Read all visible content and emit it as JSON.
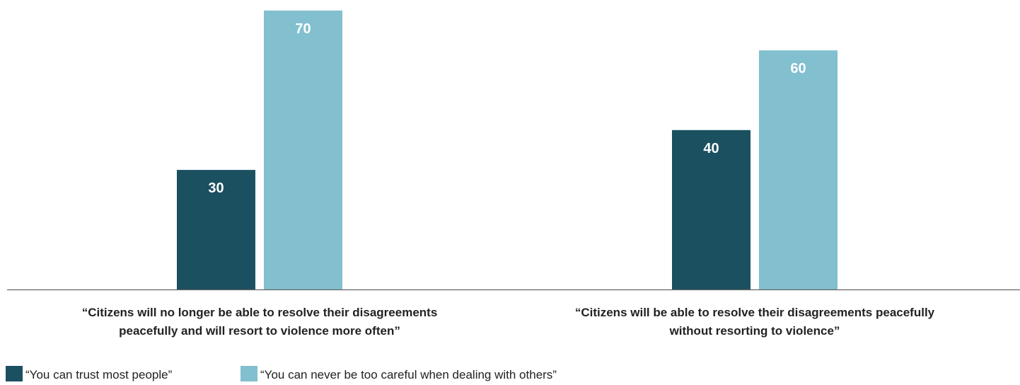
{
  "colors": {
    "series_1": "#1a5060",
    "series_2": "#82bfcf",
    "axis": "#666666",
    "text": "#222222",
    "label": "#ffffff"
  },
  "chart_data": {
    "type": "bar",
    "title": "",
    "xlabel": "",
    "ylabel": "",
    "ylim": [
      0,
      70
    ],
    "grid": false,
    "legend_position": "bottom-left",
    "categories": [
      "“Citizens will no longer be able to resolve their disagreements peacefully and will resort to violence more often”",
      "“Citizens will be able to resolve their disagreements peacefully without resorting to violence”"
    ],
    "category_lines": [
      [
        "“Citizens will no longer be able to resolve their disagreements",
        "peacefully and will resort to violence more often”"
      ],
      [
        "“Citizens will be able to resolve their disagreements peacefully",
        "without resorting to violence”"
      ]
    ],
    "series": [
      {
        "name": "“You can trust most people”",
        "values": [
          30,
          40
        ]
      },
      {
        "name": "“You can never be too careful when dealing with others”",
        "values": [
          70,
          60
        ]
      }
    ]
  }
}
